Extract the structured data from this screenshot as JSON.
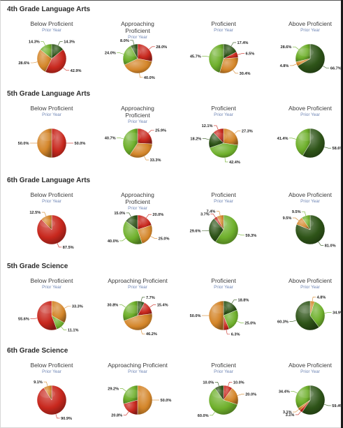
{
  "colors": {
    "below": "#c8281e",
    "approaching": "#d4862a",
    "proficient": "#6fb02c",
    "above": "#2e5418"
  },
  "sections": [
    {
      "title": "4th Grade Language Arts",
      "charts": [
        {
          "title": "Below Proficient",
          "subtitle": "Prior Year",
          "chart_data": {
            "type": "pie",
            "slices": [
              {
                "category": "above",
                "value": 14.3,
                "label": "14.3%"
              },
              {
                "category": "below",
                "value": 42.9,
                "label": "42.9%"
              },
              {
                "category": "approaching",
                "value": 28.6,
                "label": "28.6%"
              },
              {
                "category": "proficient",
                "value": 14.3,
                "label": "14.3%"
              }
            ]
          }
        },
        {
          "title": "Approaching Proficient",
          "subtitle": "Prior Year",
          "chart_data": {
            "type": "pie",
            "slices": [
              {
                "category": "below",
                "value": 28.0,
                "label": "28.0%"
              },
              {
                "category": "approaching",
                "value": 40.0,
                "label": "40.0%"
              },
              {
                "category": "proficient",
                "value": 24.0,
                "label": "24.0%"
              },
              {
                "category": "above",
                "value": 8.0,
                "label": "8.0%"
              }
            ]
          }
        },
        {
          "title": "Proficient",
          "subtitle": "Prior Year",
          "chart_data": {
            "type": "pie",
            "slices": [
              {
                "category": "above",
                "value": 17.4,
                "label": "17.4%"
              },
              {
                "category": "below",
                "value": 6.5,
                "label": "6.5%"
              },
              {
                "category": "approaching",
                "value": 30.4,
                "label": "30.4%"
              },
              {
                "category": "proficient",
                "value": 45.7,
                "label": "45.7%"
              }
            ]
          }
        },
        {
          "title": "Above Proficient",
          "subtitle": "Prior Year",
          "chart_data": {
            "type": "pie",
            "slices": [
              {
                "category": "above",
                "value": 66.7,
                "label": "66.7%"
              },
              {
                "category": "approaching",
                "value": 4.8,
                "label": "4.8%"
              },
              {
                "category": "proficient",
                "value": 28.6,
                "label": "28.6%"
              }
            ]
          }
        }
      ]
    },
    {
      "title": "5th Grade Language Arts",
      "charts": [
        {
          "title": "Below Proficient",
          "subtitle": "Prior Year",
          "chart_data": {
            "type": "pie",
            "slices": [
              {
                "category": "below",
                "value": 50.0,
                "label": "50.0%"
              },
              {
                "category": "approaching",
                "value": 50.0,
                "label": "50.0%"
              }
            ]
          }
        },
        {
          "title": "Approaching Proficient",
          "subtitle": "Prior Year",
          "chart_data": {
            "type": "pie",
            "slices": [
              {
                "category": "below",
                "value": 25.9,
                "label": "25.9%"
              },
              {
                "category": "approaching",
                "value": 33.3,
                "label": "33.3%"
              },
              {
                "category": "proficient",
                "value": 40.7,
                "label": "40.7%"
              }
            ]
          }
        },
        {
          "title": "Proficient",
          "subtitle": "Prior Year",
          "chart_data": {
            "type": "pie",
            "slices": [
              {
                "category": "approaching",
                "value": 27.3,
                "label": "27.3%"
              },
              {
                "category": "proficient",
                "value": 42.4,
                "label": "42.4%"
              },
              {
                "category": "above",
                "value": 18.2,
                "label": "18.2%"
              },
              {
                "category": "below",
                "value": 12.1,
                "label": "12.1%"
              }
            ]
          }
        },
        {
          "title": "Above Proficient",
          "subtitle": "Prior Year",
          "chart_data": {
            "type": "pie",
            "slices": [
              {
                "category": "above",
                "value": 58.6,
                "label": "58.6%"
              },
              {
                "category": "proficient",
                "value": 41.4,
                "label": "41.4%"
              }
            ]
          }
        }
      ]
    },
    {
      "title": "6th Grade Language Arts",
      "charts": [
        {
          "title": "Below Proficient",
          "subtitle": "Prior Year",
          "chart_data": {
            "type": "pie",
            "slices": [
              {
                "category": "below",
                "value": 87.5,
                "label": "87.5%"
              },
              {
                "category": "approaching",
                "value": 12.5,
                "label": "12.5%"
              }
            ]
          }
        },
        {
          "title": "Approaching Proficient",
          "subtitle": "Prior Year",
          "chart_data": {
            "type": "pie",
            "slices": [
              {
                "category": "below",
                "value": 20.0,
                "label": "20.0%"
              },
              {
                "category": "approaching",
                "value": 25.0,
                "label": "25.0%"
              },
              {
                "category": "proficient",
                "value": 40.0,
                "label": "40.0%"
              },
              {
                "category": "above",
                "value": 15.0,
                "label": "15.0%"
              }
            ]
          }
        },
        {
          "title": "Proficient",
          "subtitle": "Prior Year",
          "chart_data": {
            "type": "pie",
            "slices": [
              {
                "category": "proficient",
                "value": 59.3,
                "label": "59.3%"
              },
              {
                "category": "above",
                "value": 29.6,
                "label": "29.6%"
              },
              {
                "category": "below",
                "value": 3.7,
                "label": "3.7%"
              },
              {
                "category": "approaching",
                "value": 7.4,
                "label": "7.4%"
              }
            ]
          }
        },
        {
          "title": "Above Proficient",
          "subtitle": "Prior Year",
          "chart_data": {
            "type": "pie",
            "slices": [
              {
                "category": "above",
                "value": 81.0,
                "label": "81.0%"
              },
              {
                "category": "approaching",
                "value": 9.5,
                "label": "9.5%"
              },
              {
                "category": "proficient",
                "value": 9.5,
                "label": "9.5%"
              }
            ]
          }
        }
      ]
    },
    {
      "title": "5th Grade Science",
      "charts": [
        {
          "title": "Below Proficient",
          "subtitle": "Prior Year",
          "chart_data": {
            "type": "pie",
            "slices": [
              {
                "category": "approaching",
                "value": 33.3,
                "label": "33.3%"
              },
              {
                "category": "proficient",
                "value": 11.1,
                "label": "11.1%"
              },
              {
                "category": "below",
                "value": 55.6,
                "label": "55.6%"
              }
            ]
          }
        },
        {
          "title": "Approaching Proficient",
          "subtitle": "Prior Year",
          "chart_data": {
            "type": "pie",
            "slices": [
              {
                "category": "above",
                "value": 7.7,
                "label": "7.7%"
              },
              {
                "category": "below",
                "value": 15.4,
                "label": "15.4%"
              },
              {
                "category": "approaching",
                "value": 46.2,
                "label": "46.2%"
              },
              {
                "category": "proficient",
                "value": 30.8,
                "label": "30.8%"
              }
            ]
          }
        },
        {
          "title": "Proficient",
          "subtitle": "Prior Year",
          "chart_data": {
            "type": "pie",
            "slices": [
              {
                "category": "above",
                "value": 18.8,
                "label": "18.8%"
              },
              {
                "category": "proficient",
                "value": 25.0,
                "label": "25.0%"
              },
              {
                "category": "below",
                "value": 6.3,
                "label": "6.3%"
              },
              {
                "category": "approaching",
                "value": 50.0,
                "label": "50.0%"
              }
            ]
          }
        },
        {
          "title": "Above Proficient",
          "subtitle": "Prior Year",
          "chart_data": {
            "type": "pie",
            "slices": [
              {
                "category": "approaching",
                "value": 4.8,
                "label": "4.8%"
              },
              {
                "category": "proficient",
                "value": 34.9,
                "label": "34.9%"
              },
              {
                "category": "above",
                "value": 60.3,
                "label": "60.3%"
              }
            ]
          }
        }
      ]
    },
    {
      "title": "6th Grade Science",
      "charts": [
        {
          "title": "Below Proficient",
          "subtitle": "Prior Year",
          "chart_data": {
            "type": "pie",
            "slices": [
              {
                "category": "below",
                "value": 90.9,
                "label": "90.9%"
              },
              {
                "category": "approaching",
                "value": 9.1,
                "label": "9.1%"
              }
            ]
          }
        },
        {
          "title": "Approaching Proficient",
          "subtitle": "Prior Year",
          "chart_data": {
            "type": "pie",
            "slices": [
              {
                "category": "approaching",
                "value": 50.0,
                "label": "50.0%"
              },
              {
                "category": "below",
                "value": 20.8,
                "label": "20.8%"
              },
              {
                "category": "proficient",
                "value": 29.2,
                "label": "29.2%"
              }
            ]
          }
        },
        {
          "title": "Proficient",
          "subtitle": "Prior Year",
          "chart_data": {
            "type": "pie",
            "slices": [
              {
                "category": "below",
                "value": 10.0,
                "label": "10.0%"
              },
              {
                "category": "approaching",
                "value": 20.0,
                "label": "20.0%"
              },
              {
                "category": "proficient",
                "value": 60.0,
                "label": "60.0%"
              },
              {
                "category": "above",
                "value": 10.0,
                "label": "10.0%"
              }
            ]
          }
        },
        {
          "title": "Above Proficient",
          "subtitle": "Prior Year",
          "chart_data": {
            "type": "pie",
            "slices": [
              {
                "category": "above",
                "value": 59.4,
                "label": "59.4%"
              },
              {
                "category": "below",
                "value": 3.1,
                "label": "3.1%"
              },
              {
                "category": "approaching",
                "value": 3.1,
                "label": "3.1%"
              },
              {
                "category": "proficient",
                "value": 34.4,
                "label": "34.4%"
              }
            ]
          }
        }
      ]
    }
  ]
}
